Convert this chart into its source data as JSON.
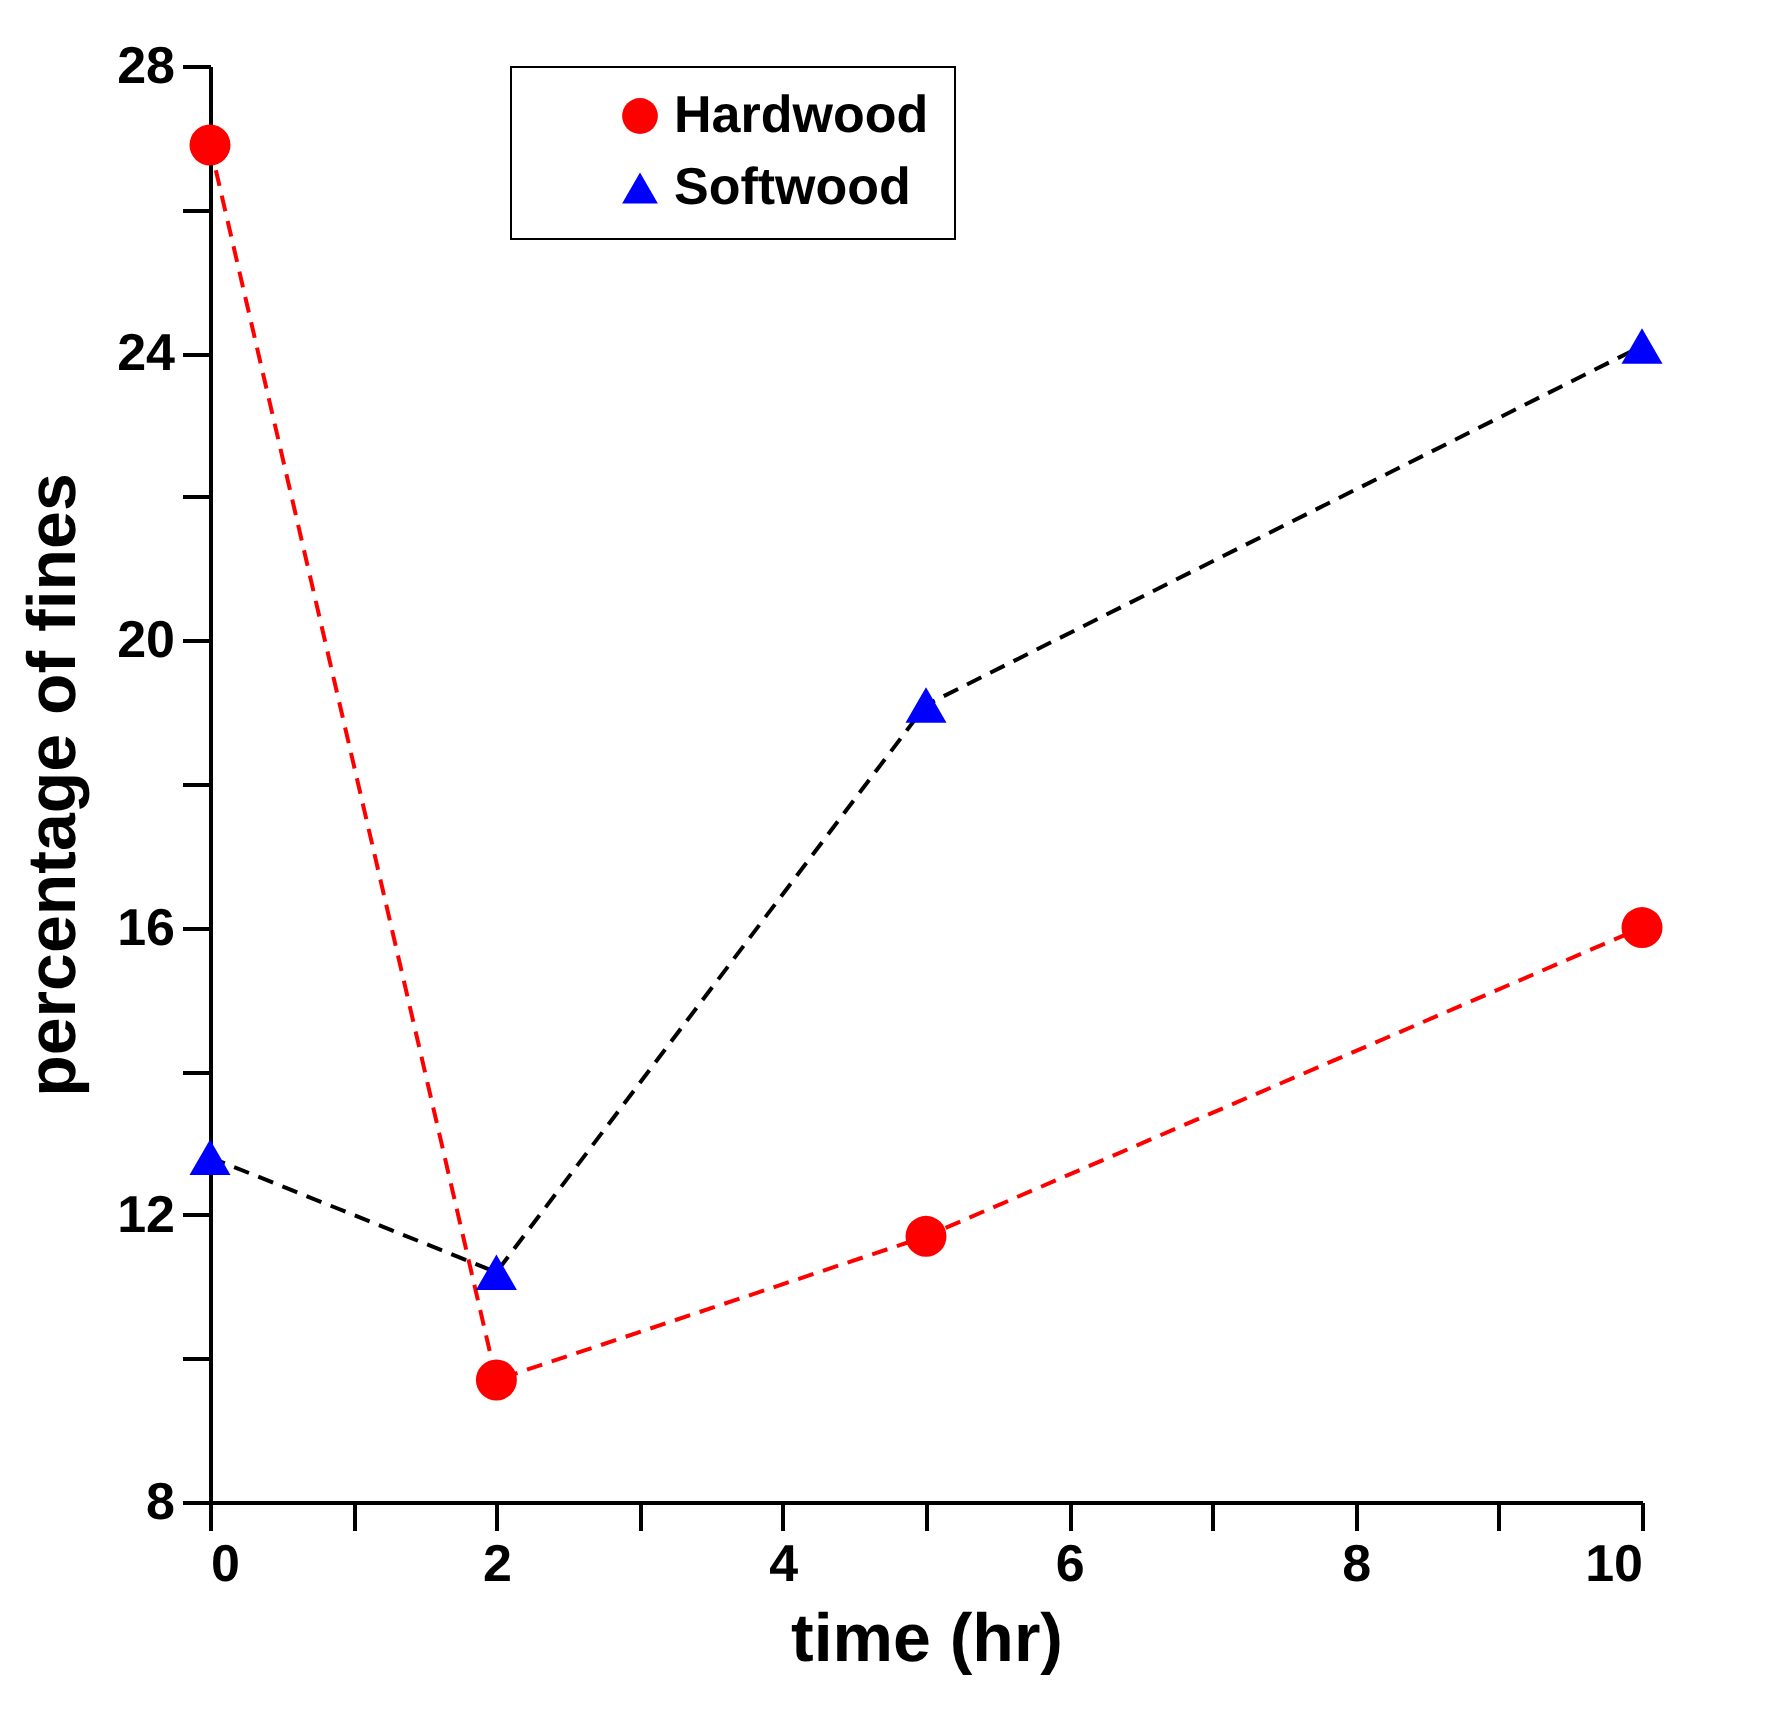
{
  "chart_data": {
    "type": "line",
    "xlabel": "time (hr)",
    "ylabel": "percentage of fines",
    "xlim": [
      0,
      10
    ],
    "ylim": [
      8,
      28
    ],
    "xticks": [
      0,
      {
        "value": 1,
        "label": null
      },
      2,
      {
        "value": 3,
        "label": null
      },
      4,
      {
        "value": 5,
        "label": null
      },
      6,
      {
        "value": 7,
        "label": null
      },
      8,
      {
        "value": 9,
        "label": null
      },
      10
    ],
    "yticks": [
      8,
      {
        "value": 10,
        "label": null
      },
      12,
      {
        "value": 14,
        "label": null
      },
      16,
      {
        "value": 18,
        "label": null
      },
      20,
      {
        "value": 22,
        "label": null
      },
      24,
      {
        "value": 26,
        "label": null
      },
      28
    ],
    "grid": false,
    "legend": "top",
    "line_style": "dashed",
    "series": [
      {
        "name": "Hardwood",
        "color": "#ff0000",
        "marker": "circle",
        "x": [
          0,
          2,
          5,
          10
        ],
        "values": [
          26.9,
          9.7,
          11.7,
          16.0
        ]
      },
      {
        "name": "Softwood",
        "color": "#000000",
        "colors": [
          "#0000ff",
          "#0000ff",
          "#0000ff",
          "#0000ff"
        ],
        "marker": "triangle",
        "x": [
          0,
          2,
          5,
          10
        ],
        "values": [
          12.8,
          11.2,
          19.1,
          24.1
        ]
      }
    ]
  }
}
